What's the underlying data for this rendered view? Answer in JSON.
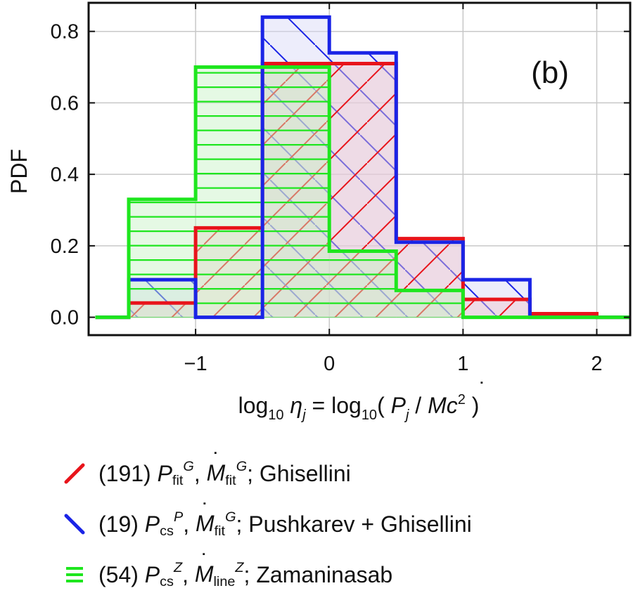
{
  "chart_data": {
    "type": "histogram",
    "panel_label": "(b)",
    "ylabel": "PDF",
    "xlabel": {
      "parts": [
        "log",
        "10",
        " ",
        "η",
        "j",
        " = log",
        "10",
        "( ",
        "P",
        "j",
        " / ",
        "M",
        "c",
        "2",
        " )"
      ]
    },
    "xlim": [
      -1.8,
      2.25
    ],
    "ylim": [
      -0.05,
      0.88
    ],
    "xticks": [
      -1,
      0,
      1,
      2
    ],
    "xtick_labels": [
      "−1",
      "0",
      "1",
      "2"
    ],
    "yticks": [
      0.0,
      0.2,
      0.4,
      0.6,
      0.8
    ],
    "ytick_labels": [
      "0.0",
      "0.2",
      "0.4",
      "0.6",
      "0.8"
    ],
    "grid": true,
    "baseline_range": [
      -1.75,
      2.25
    ],
    "series": [
      {
        "name": "Ghisellini",
        "color": "#e8141b",
        "fill": "#f0c6cc",
        "hatch": "diagonal-up",
        "bin_edges": [
          -1.5,
          -1.0,
          -0.5,
          0.0,
          0.5,
          1.0,
          1.5,
          2.0
        ],
        "values": [
          0.04,
          0.25,
          0.71,
          0.71,
          0.22,
          0.05,
          0.01
        ]
      },
      {
        "name": "Pushkarev + Ghisellini",
        "color": "#1a24e6",
        "fill": "#d6d8f6",
        "hatch": "diagonal-down",
        "bin_edges": [
          -1.5,
          -1.0,
          -0.5,
          0.0,
          0.5,
          1.0,
          1.5
        ],
        "values": [
          0.105,
          0.0,
          0.84,
          0.74,
          0.21,
          0.105
        ]
      },
      {
        "name": "Zamaninasab",
        "color": "#1ee61e",
        "fill": "#c6f2c4",
        "hatch": "horizontal",
        "bin_edges": [
          -1.5,
          -1.0,
          -0.5,
          0.0,
          0.5,
          1.0
        ],
        "values": [
          0.33,
          0.7,
          0.7,
          0.185,
          0.075
        ]
      }
    ],
    "legend": [
      {
        "count": "(191)",
        "p": "P",
        "p_sub": "fit",
        "p_sup": "G",
        "m_sub": "fit",
        "m_sup": "G",
        "label": "; Ghisellini"
      },
      {
        "count": "(19)",
        "p": "P",
        "p_sub": "cs",
        "p_sup": "P",
        "m_sub": "fit",
        "m_sup": "G",
        "label": "; Pushkarev + Ghisellini"
      },
      {
        "count": "(54)",
        "p": "P",
        "p_sub": "cs",
        "p_sup": "Z",
        "m_sub": "line",
        "m_sup": "Z",
        "label": "; Zamaninasab"
      }
    ],
    "m_symbol": "M",
    "comma": ","
  }
}
